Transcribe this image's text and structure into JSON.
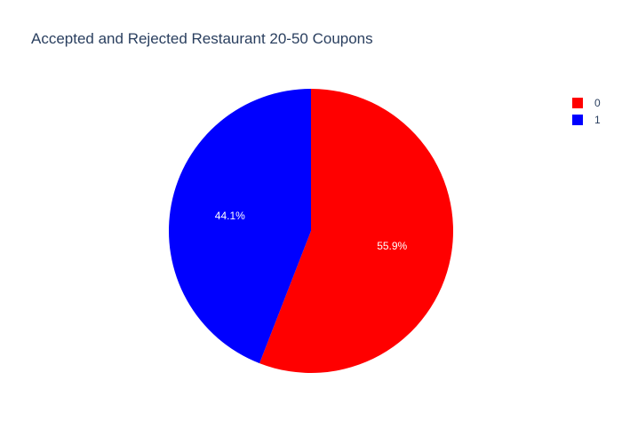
{
  "chart_data": {
    "type": "pie",
    "title": "Accepted and Rejected Restaurant 20-50 Coupons",
    "categories": [
      "0",
      "1"
    ],
    "values": [
      55.9,
      44.1
    ],
    "labels": [
      "55.9%",
      "44.1%"
    ],
    "colors": [
      "#ff0000",
      "#0000ff"
    ],
    "legend": {
      "position": "top-right",
      "entries": [
        "0",
        "1"
      ]
    }
  }
}
